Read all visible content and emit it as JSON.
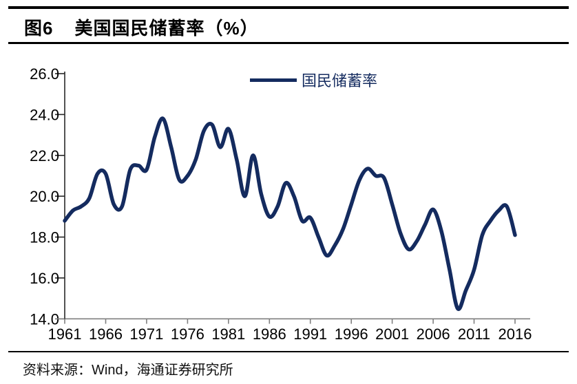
{
  "header": {
    "figure_label": "图6",
    "title": "美国国民储蓄率（%）"
  },
  "source": {
    "text": "资料来源：Wind，海通证券研究所"
  },
  "chart_data": {
    "type": "line",
    "title": "美国国民储蓄率（%）",
    "xlabel": "",
    "ylabel": "",
    "grid": false,
    "legend_position": "top-center",
    "ylim": [
      14.0,
      26.0
    ],
    "ytick_labels": [
      "26.0",
      "24.0",
      "22.0",
      "20.0",
      "18.0",
      "16.0",
      "14.0"
    ],
    "xtick_labels": [
      "1961",
      "1966",
      "1971",
      "1976",
      "1981",
      "1986",
      "1991",
      "1996",
      "2001",
      "2006",
      "2011",
      "2016"
    ],
    "x": [
      1961,
      1962,
      1963,
      1964,
      1965,
      1966,
      1967,
      1968,
      1969,
      1970,
      1971,
      1972,
      1973,
      1974,
      1975,
      1976,
      1977,
      1978,
      1979,
      1980,
      1981,
      1982,
      1983,
      1984,
      1985,
      1986,
      1987,
      1988,
      1989,
      1990,
      1991,
      1992,
      1993,
      1994,
      1995,
      1996,
      1997,
      1998,
      1999,
      2000,
      2001,
      2002,
      2003,
      2004,
      2005,
      2006,
      2007,
      2008,
      2009,
      2010,
      2011,
      2012,
      2013,
      2014,
      2015,
      2016
    ],
    "series": [
      {
        "name": "国民储蓄率",
        "color": "#142B5F",
        "values": [
          18.8,
          19.3,
          19.5,
          19.9,
          21.1,
          21.1,
          19.6,
          19.5,
          21.3,
          21.5,
          21.3,
          22.9,
          23.8,
          22.4,
          20.8,
          21.0,
          21.8,
          23.2,
          23.5,
          22.4,
          23.3,
          21.8,
          20.0,
          22.0,
          20.1,
          19.0,
          19.5,
          20.65,
          20.0,
          18.8,
          18.95,
          18.0,
          17.1,
          17.6,
          18.4,
          19.6,
          20.8,
          21.35,
          21.0,
          20.9,
          19.6,
          18.2,
          17.4,
          17.8,
          18.6,
          19.35,
          18.3,
          16.4,
          14.5,
          15.4,
          16.4,
          18.1,
          18.8,
          19.3,
          19.5,
          18.1
        ]
      }
    ],
    "axis_colors": {
      "y_axis": "#262626",
      "x_axis": "#7f7f7f"
    }
  }
}
